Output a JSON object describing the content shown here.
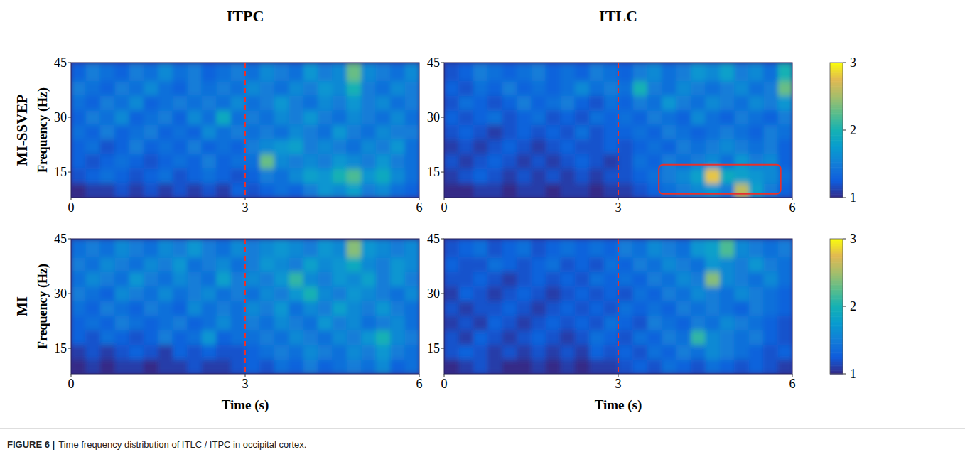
{
  "column_titles": [
    "ITPC",
    "ITLC"
  ],
  "row_titles": [
    "MI-SSVEP",
    "MI"
  ],
  "caption_label": "FIGURE 6 |",
  "caption": "Time frequency distribution of ITLC / ITPC in occipital cortex.",
  "chart_data": [
    {
      "type": "heatmap",
      "ylabel": "Frequency (Hz)",
      "xlim": [
        0,
        6
      ],
      "ylim": [
        8,
        45
      ],
      "xticks": [
        0,
        3,
        6
      ],
      "yticks": [
        15,
        30,
        45
      ],
      "x_edges": [
        0,
        0.25,
        0.5,
        0.75,
        1,
        1.25,
        1.5,
        1.75,
        2,
        2.25,
        2.5,
        2.75,
        3,
        3.25,
        3.5,
        3.75,
        4,
        4.25,
        4.5,
        4.75,
        5,
        5.25,
        5.5,
        5.75,
        6
      ],
      "y_edges": [
        8,
        12,
        16,
        20,
        24,
        28,
        32,
        36,
        40,
        45
      ],
      "event_line": 3,
      "cells": [
        [
          1.0,
          1.1,
          1.1,
          1.2,
          1.1,
          1.2,
          1.1,
          1.2,
          1.1,
          1.2,
          1.1,
          1.3,
          1.2,
          1.3,
          1.4,
          1.3,
          1.5,
          1.7,
          1.6,
          1.8,
          1.5,
          1.6,
          1.4,
          1.3
        ],
        [
          1.2,
          1.3,
          1.4,
          1.3,
          1.2,
          1.3,
          1.4,
          1.2,
          1.3,
          1.4,
          1.3,
          1.2,
          1.3,
          1.5,
          1.4,
          1.6,
          1.8,
          1.7,
          2.0,
          2.2,
          1.7,
          1.9,
          1.6,
          1.4
        ],
        [
          1.3,
          1.2,
          1.3,
          1.4,
          1.3,
          1.2,
          1.3,
          1.4,
          1.3,
          1.5,
          1.3,
          1.4,
          1.4,
          2.3,
          1.6,
          1.5,
          1.6,
          1.5,
          1.7,
          1.6,
          1.5,
          1.7,
          1.5,
          1.4
        ],
        [
          1.3,
          1.4,
          1.2,
          1.3,
          1.5,
          1.3,
          1.4,
          1.3,
          1.5,
          1.3,
          1.4,
          1.3,
          1.5,
          1.6,
          1.7,
          1.8,
          1.5,
          1.6,
          1.5,
          1.4,
          1.6,
          1.5,
          1.7,
          1.4
        ],
        [
          1.4,
          1.3,
          1.5,
          1.3,
          1.4,
          1.5,
          1.3,
          1.4,
          1.3,
          1.6,
          1.4,
          1.5,
          1.4,
          1.5,
          1.4,
          1.6,
          1.5,
          1.4,
          1.7,
          1.5,
          1.4,
          1.6,
          1.5,
          1.5
        ],
        [
          1.3,
          1.5,
          1.4,
          1.6,
          1.3,
          1.4,
          1.5,
          1.3,
          1.6,
          1.4,
          1.9,
          1.4,
          1.5,
          1.4,
          1.6,
          1.5,
          1.7,
          1.5,
          1.4,
          1.6,
          1.5,
          1.4,
          1.6,
          1.4
        ],
        [
          1.4,
          1.3,
          1.5,
          1.4,
          1.6,
          1.3,
          1.4,
          1.5,
          1.4,
          1.5,
          1.4,
          1.6,
          1.4,
          1.5,
          1.7,
          1.5,
          1.4,
          1.6,
          1.5,
          1.7,
          1.5,
          1.6,
          1.4,
          1.5
        ],
        [
          1.5,
          1.4,
          1.3,
          1.5,
          1.4,
          1.6,
          1.4,
          1.3,
          1.5,
          1.4,
          1.5,
          1.4,
          1.6,
          1.5,
          1.4,
          1.6,
          1.5,
          1.7,
          1.6,
          2.0,
          1.5,
          1.4,
          1.6,
          1.5
        ],
        [
          1.3,
          1.5,
          1.4,
          1.3,
          1.5,
          1.4,
          1.6,
          1.4,
          1.5,
          1.3,
          1.4,
          1.5,
          1.4,
          1.6,
          1.5,
          1.4,
          1.7,
          1.5,
          1.6,
          2.3,
          1.6,
          1.5,
          1.4,
          1.6
        ]
      ]
    },
    {
      "type": "heatmap",
      "xlim": [
        0,
        6
      ],
      "ylim": [
        8,
        45
      ],
      "xticks": [
        0,
        3,
        6
      ],
      "yticks": [
        15,
        30,
        45
      ],
      "x_edges": [
        0,
        0.25,
        0.5,
        0.75,
        1,
        1.25,
        1.5,
        1.75,
        2,
        2.25,
        2.5,
        2.75,
        3,
        3.25,
        3.5,
        3.75,
        4,
        4.25,
        4.5,
        4.75,
        5,
        5.25,
        5.5,
        5.75,
        6
      ],
      "y_edges": [
        8,
        12,
        16,
        20,
        24,
        28,
        32,
        36,
        40,
        45
      ],
      "event_line": 3,
      "highlight": {
        "x": [
          3.7,
          5.8
        ],
        "y": [
          9,
          17
        ]
      },
      "colorbar": {
        "range": [
          1,
          3
        ],
        "ticks": [
          1,
          2,
          3
        ]
      },
      "cells": [
        [
          1.0,
          1.0,
          1.1,
          1.1,
          1.0,
          1.1,
          1.1,
          1.0,
          1.1,
          1.1,
          1.0,
          1.1,
          1.1,
          1.2,
          1.3,
          1.4,
          1.5,
          1.6,
          1.7,
          1.5,
          2.6,
          1.8,
          1.5,
          1.3
        ],
        [
          1.1,
          1.2,
          1.3,
          1.2,
          1.1,
          1.2,
          1.1,
          1.2,
          1.1,
          1.2,
          1.1,
          1.2,
          1.2,
          1.3,
          1.4,
          1.5,
          1.6,
          1.8,
          2.8,
          1.9,
          1.8,
          1.7,
          1.6,
          1.4
        ],
        [
          1.2,
          1.1,
          1.2,
          1.3,
          1.2,
          1.1,
          1.2,
          1.1,
          1.2,
          1.3,
          1.2,
          1.1,
          1.2,
          1.4,
          1.3,
          1.5,
          1.4,
          1.5,
          1.6,
          1.4,
          1.7,
          1.5,
          1.6,
          1.3
        ],
        [
          1.1,
          1.2,
          1.1,
          1.2,
          1.3,
          1.2,
          1.1,
          1.2,
          1.3,
          1.2,
          1.2,
          1.3,
          1.2,
          1.3,
          1.4,
          1.3,
          1.5,
          1.4,
          1.5,
          1.6,
          1.5,
          1.4,
          1.5,
          1.3
        ],
        [
          1.2,
          1.3,
          1.2,
          1.1,
          1.2,
          1.3,
          1.2,
          1.3,
          1.2,
          1.4,
          1.2,
          1.3,
          1.3,
          1.4,
          1.3,
          1.5,
          1.4,
          1.3,
          1.4,
          1.5,
          1.4,
          1.3,
          1.5,
          1.4
        ],
        [
          1.3,
          1.2,
          1.3,
          1.4,
          1.2,
          1.3,
          1.4,
          1.2,
          1.3,
          1.2,
          1.4,
          1.3,
          1.4,
          1.3,
          1.5,
          1.4,
          1.3,
          1.6,
          1.4,
          1.3,
          1.5,
          1.4,
          1.3,
          1.5
        ],
        [
          1.2,
          1.4,
          1.3,
          1.2,
          1.3,
          1.5,
          1.3,
          1.4,
          1.5,
          1.3,
          1.2,
          1.4,
          1.3,
          1.5,
          1.4,
          1.7,
          1.5,
          1.4,
          1.6,
          1.5,
          1.4,
          1.6,
          1.5,
          1.7
        ],
        [
          1.3,
          1.2,
          1.4,
          1.3,
          1.5,
          1.3,
          1.4,
          1.3,
          1.4,
          1.6,
          1.4,
          1.5,
          1.4,
          2.0,
          1.5,
          1.4,
          1.6,
          1.5,
          1.4,
          1.5,
          1.6,
          1.4,
          1.5,
          2.3
        ],
        [
          1.2,
          1.3,
          1.5,
          1.4,
          1.3,
          1.4,
          1.5,
          1.3,
          1.4,
          1.3,
          1.5,
          1.4,
          1.3,
          1.5,
          1.6,
          1.4,
          1.5,
          1.7,
          1.6,
          1.8,
          1.5,
          1.6,
          1.4,
          2.0
        ]
      ]
    },
    {
      "type": "heatmap",
      "xlabel": "Time (s)",
      "ylabel": "Frequency (Hz)",
      "xlim": [
        0,
        6
      ],
      "ylim": [
        8,
        45
      ],
      "xticks": [
        0,
        3,
        6
      ],
      "yticks": [
        15,
        30,
        45
      ],
      "x_edges": [
        0,
        0.25,
        0.5,
        0.75,
        1,
        1.25,
        1.5,
        1.75,
        2,
        2.25,
        2.5,
        2.75,
        3,
        3.25,
        3.5,
        3.75,
        4,
        4.25,
        4.5,
        4.75,
        5,
        5.25,
        5.5,
        5.75,
        6
      ],
      "y_edges": [
        8,
        12,
        16,
        20,
        24,
        28,
        32,
        36,
        40,
        45
      ],
      "event_line": 3,
      "cells": [
        [
          1.0,
          1.1,
          1.0,
          1.1,
          1.1,
          1.0,
          1.1,
          1.1,
          1.2,
          1.1,
          1.1,
          1.2,
          1.3,
          1.2,
          1.4,
          1.3,
          1.5,
          1.3,
          1.4,
          1.5,
          1.4,
          1.6,
          1.3,
          1.4
        ],
        [
          1.1,
          1.2,
          1.1,
          1.2,
          1.3,
          1.2,
          1.1,
          1.3,
          1.2,
          1.3,
          1.2,
          1.2,
          1.3,
          1.4,
          1.5,
          1.4,
          1.6,
          1.5,
          1.4,
          1.6,
          1.5,
          1.7,
          1.5,
          1.4
        ],
        [
          1.3,
          1.2,
          1.4,
          1.3,
          1.2,
          1.3,
          1.5,
          1.3,
          1.4,
          1.7,
          1.3,
          1.4,
          1.4,
          1.5,
          1.4,
          1.6,
          1.5,
          1.4,
          1.6,
          1.5,
          1.7,
          2.0,
          1.6,
          1.5
        ],
        [
          1.3,
          1.4,
          1.3,
          1.5,
          1.4,
          1.3,
          1.4,
          1.5,
          1.3,
          1.4,
          1.6,
          1.4,
          1.5,
          1.4,
          1.6,
          1.5,
          1.4,
          1.7,
          1.5,
          1.6,
          1.4,
          1.5,
          1.6,
          1.4
        ],
        [
          1.4,
          1.3,
          1.5,
          1.4,
          1.3,
          1.5,
          1.4,
          1.3,
          1.6,
          1.4,
          1.5,
          1.4,
          1.6,
          1.5,
          1.7,
          1.4,
          1.6,
          1.5,
          1.8,
          1.6,
          1.5,
          1.7,
          1.5,
          1.4
        ],
        [
          1.5,
          1.4,
          1.3,
          1.6,
          1.5,
          1.4,
          1.6,
          1.4,
          1.5,
          1.6,
          1.4,
          1.5,
          1.4,
          1.6,
          1.5,
          1.7,
          2.0,
          1.6,
          1.5,
          1.7,
          1.6,
          1.5,
          1.4,
          1.6
        ],
        [
          1.4,
          1.6,
          1.5,
          1.4,
          1.7,
          1.5,
          1.4,
          1.6,
          1.5,
          1.4,
          1.8,
          1.5,
          1.6,
          1.5,
          1.7,
          2.1,
          1.6,
          1.5,
          1.7,
          1.6,
          1.8,
          1.5,
          1.7,
          1.5
        ],
        [
          1.5,
          1.4,
          1.6,
          1.5,
          1.4,
          1.6,
          1.5,
          1.7,
          1.4,
          1.5,
          1.6,
          1.4,
          1.5,
          1.7,
          1.6,
          1.5,
          1.8,
          1.6,
          1.7,
          1.9,
          1.6,
          1.5,
          1.7,
          1.6
        ],
        [
          1.4,
          1.5,
          1.4,
          1.6,
          1.5,
          1.4,
          1.6,
          1.5,
          1.7,
          1.5,
          1.4,
          1.6,
          1.5,
          1.6,
          1.7,
          1.6,
          1.5,
          1.7,
          1.6,
          2.4,
          1.7,
          1.6,
          1.5,
          1.6
        ]
      ]
    },
    {
      "type": "heatmap",
      "xlabel": "Time (s)",
      "xlim": [
        0,
        6
      ],
      "ylim": [
        8,
        45
      ],
      "xticks": [
        0,
        3,
        6
      ],
      "yticks": [
        15,
        30,
        45
      ],
      "x_edges": [
        0,
        0.25,
        0.5,
        0.75,
        1,
        1.25,
        1.5,
        1.75,
        2,
        2.25,
        2.5,
        2.75,
        3,
        3.25,
        3.5,
        3.75,
        4,
        4.25,
        4.5,
        4.75,
        5,
        5.25,
        5.5,
        5.75,
        6
      ],
      "y_edges": [
        8,
        12,
        16,
        20,
        24,
        28,
        32,
        36,
        40,
        45
      ],
      "event_line": 3,
      "colorbar": {
        "range": [
          1,
          3
        ],
        "ticks": [
          1,
          2,
          3
        ]
      },
      "cells": [
        [
          1.0,
          1.1,
          1.2,
          1.1,
          1.0,
          1.0,
          1.1,
          1.0,
          1.1,
          1.0,
          1.1,
          1.1,
          1.2,
          1.3,
          1.2,
          1.4,
          1.3,
          1.2,
          1.4,
          1.3,
          1.2,
          1.3,
          1.2,
          1.1
        ],
        [
          1.2,
          1.3,
          1.2,
          1.1,
          1.2,
          1.1,
          1.2,
          1.1,
          1.2,
          1.1,
          1.3,
          1.2,
          1.3,
          1.2,
          1.4,
          1.3,
          1.5,
          1.4,
          1.6,
          1.5,
          1.4,
          1.3,
          1.2,
          1.3
        ],
        [
          1.2,
          1.1,
          1.3,
          1.2,
          1.1,
          1.2,
          1.3,
          1.2,
          1.1,
          1.2,
          1.4,
          1.3,
          1.2,
          1.4,
          1.3,
          1.5,
          1.4,
          2.1,
          1.6,
          1.5,
          1.4,
          1.5,
          1.3,
          1.2
        ],
        [
          1.1,
          1.2,
          1.1,
          1.3,
          1.2,
          1.1,
          1.2,
          1.3,
          1.2,
          1.3,
          1.2,
          1.4,
          1.3,
          1.2,
          1.5,
          1.4,
          1.3,
          1.5,
          1.4,
          1.6,
          1.5,
          1.4,
          1.3,
          1.2
        ],
        [
          1.2,
          1.1,
          1.2,
          1.2,
          1.3,
          1.2,
          1.1,
          1.2,
          1.3,
          1.2,
          1.3,
          1.2,
          1.4,
          1.3,
          1.4,
          1.3,
          1.5,
          1.4,
          1.5,
          1.4,
          1.3,
          1.5,
          1.4,
          1.3
        ],
        [
          1.1,
          1.3,
          1.2,
          1.1,
          1.2,
          1.3,
          1.2,
          1.1,
          1.2,
          1.3,
          1.2,
          1.3,
          1.2,
          1.4,
          1.3,
          1.5,
          1.4,
          1.6,
          1.5,
          1.4,
          1.6,
          1.5,
          1.4,
          1.3
        ],
        [
          1.2,
          1.2,
          1.3,
          1.2,
          1.1,
          1.2,
          1.3,
          1.2,
          1.3,
          1.2,
          1.4,
          1.3,
          1.4,
          1.3,
          1.5,
          1.4,
          1.6,
          1.5,
          2.4,
          1.6,
          1.5,
          1.4,
          1.6,
          1.4
        ],
        [
          1.3,
          1.2,
          1.2,
          1.4,
          1.3,
          1.2,
          1.3,
          1.4,
          1.2,
          1.3,
          1.2,
          1.4,
          1.3,
          1.5,
          1.4,
          1.6,
          1.5,
          1.4,
          1.7,
          1.6,
          1.5,
          1.7,
          1.5,
          1.4
        ],
        [
          1.2,
          1.3,
          1.4,
          1.2,
          1.3,
          1.4,
          1.2,
          1.3,
          1.4,
          1.3,
          1.4,
          1.3,
          1.5,
          1.4,
          1.6,
          1.5,
          1.4,
          1.7,
          1.8,
          2.2,
          1.6,
          1.5,
          1.4,
          1.5
        ]
      ]
    }
  ]
}
